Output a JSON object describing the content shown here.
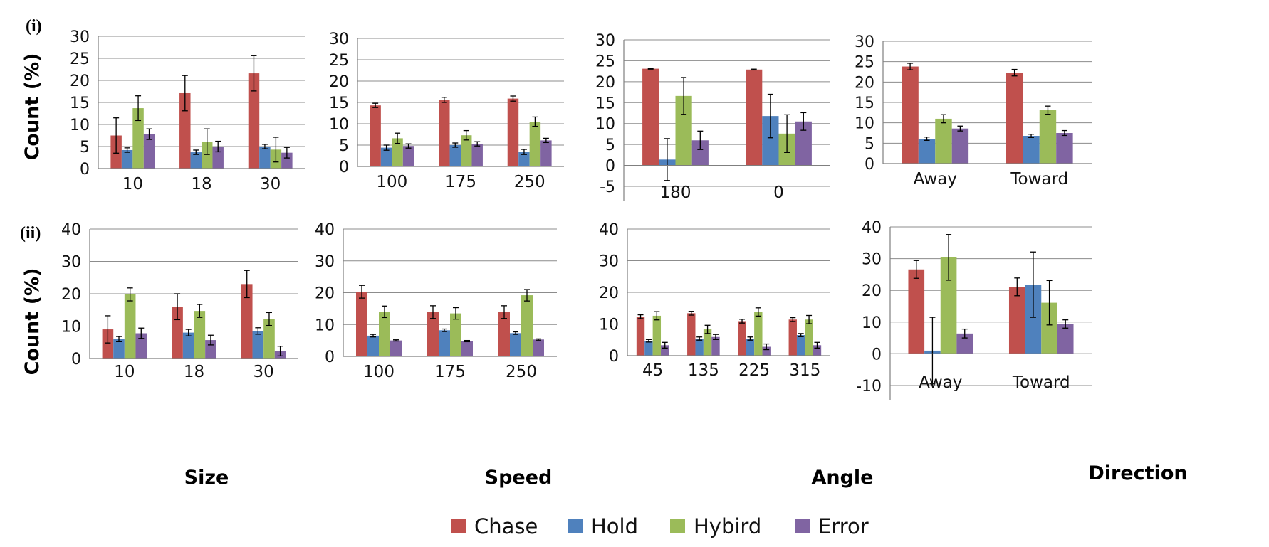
{
  "row_labels": [
    "(i)",
    "(ii)"
  ],
  "y_axis_label": "Count (%)",
  "column_labels": [
    "Size",
    "Speed",
    "Angle",
    "Direction"
  ],
  "legend": [
    {
      "name": "Chase",
      "color": "#c0504d"
    },
    {
      "name": "Hold",
      "color": "#4f81bd"
    },
    {
      "name": "Hybird",
      "color": "#9bbb59"
    },
    {
      "name": "Error",
      "color": "#8064a2"
    }
  ],
  "chart_data": [
    {
      "type": "bar",
      "row": "(i)",
      "column": "Size",
      "ylim": [
        0,
        30
      ],
      "yticks": [
        0,
        5,
        10,
        15,
        20,
        25,
        30
      ],
      "categories": [
        "10",
        "18",
        "30"
      ],
      "series": [
        {
          "name": "Chase",
          "values": [
            7.5,
            17.1,
            21.6
          ],
          "errors": [
            4.0,
            4.0,
            4.0
          ]
        },
        {
          "name": "Hold",
          "values": [
            4.2,
            3.7,
            5.0
          ],
          "errors": [
            0.5,
            0.5,
            0.5
          ]
        },
        {
          "name": "Hybird",
          "values": [
            13.7,
            6.1,
            4.3
          ],
          "errors": [
            2.8,
            2.9,
            2.8
          ]
        },
        {
          "name": "Error",
          "values": [
            7.8,
            5.0,
            3.6
          ],
          "errors": [
            1.2,
            1.2,
            1.2
          ]
        }
      ]
    },
    {
      "type": "bar",
      "row": "(i)",
      "column": "Speed",
      "ylim": [
        0,
        30
      ],
      "yticks": [
        0,
        5,
        10,
        15,
        20,
        25,
        30
      ],
      "categories": [
        "100",
        "175",
        "250"
      ],
      "series": [
        {
          "name": "Chase",
          "values": [
            14.3,
            15.6,
            15.9
          ],
          "errors": [
            0.5,
            0.6,
            0.6
          ]
        },
        {
          "name": "Hold",
          "values": [
            4.4,
            5.0,
            3.4
          ],
          "errors": [
            0.6,
            0.5,
            0.6
          ]
        },
        {
          "name": "Hybird",
          "values": [
            6.6,
            7.3,
            10.5
          ],
          "errors": [
            1.2,
            1.1,
            1.1
          ]
        },
        {
          "name": "Error",
          "values": [
            4.8,
            5.3,
            6.1
          ],
          "errors": [
            0.5,
            0.5,
            0.5
          ]
        }
      ]
    },
    {
      "type": "bar",
      "row": "(i)",
      "column": "Angle",
      "ylim": [
        -5,
        30
      ],
      "yticks": [
        -5,
        0,
        5,
        10,
        15,
        20,
        25,
        30
      ],
      "categories": [
        "180",
        "0"
      ],
      "series": [
        {
          "name": "Chase",
          "values": [
            23.1,
            22.9
          ],
          "errors": [
            0.1,
            0.1
          ]
        },
        {
          "name": "Hold",
          "values": [
            1.4,
            11.8
          ],
          "errors": [
            5.0,
            5.2
          ]
        },
        {
          "name": "Hybird",
          "values": [
            16.6,
            7.6
          ],
          "errors": [
            4.4,
            4.5
          ]
        },
        {
          "name": "Error",
          "values": [
            6.0,
            10.5
          ],
          "errors": [
            2.2,
            2.1
          ]
        }
      ]
    },
    {
      "type": "bar",
      "row": "(i)",
      "column": "Direction",
      "ylim": [
        0,
        30
      ],
      "yticks": [
        0,
        5,
        10,
        15,
        20,
        25,
        30
      ],
      "categories": [
        "Away",
        "Toward"
      ],
      "series": [
        {
          "name": "Chase",
          "values": [
            23.8,
            22.3
          ],
          "errors": [
            0.8,
            0.8
          ]
        },
        {
          "name": "Hold",
          "values": [
            6.1,
            6.8
          ],
          "errors": [
            0.4,
            0.4
          ]
        },
        {
          "name": "Hybird",
          "values": [
            11.0,
            13.1
          ],
          "errors": [
            1.0,
            1.0
          ]
        },
        {
          "name": "Error",
          "values": [
            8.6,
            7.5
          ],
          "errors": [
            0.6,
            0.6
          ]
        }
      ]
    },
    {
      "type": "bar",
      "row": "(ii)",
      "column": "Size",
      "ylim": [
        0,
        40
      ],
      "yticks": [
        0,
        10,
        20,
        30,
        40
      ],
      "categories": [
        "10",
        "18",
        "30"
      ],
      "series": [
        {
          "name": "Chase",
          "values": [
            9.0,
            16.0,
            23.0
          ],
          "errors": [
            4.2,
            4.0,
            4.2
          ]
        },
        {
          "name": "Hold",
          "values": [
            6.0,
            8.0,
            8.5
          ],
          "errors": [
            0.8,
            1.0,
            1.0
          ]
        },
        {
          "name": "Hybird",
          "values": [
            19.8,
            14.7,
            12.2
          ],
          "errors": [
            2.0,
            2.0,
            2.0
          ]
        },
        {
          "name": "Error",
          "values": [
            7.8,
            5.7,
            2.3
          ],
          "errors": [
            1.6,
            1.5,
            1.5
          ]
        }
      ]
    },
    {
      "type": "bar",
      "row": "(ii)",
      "column": "Speed",
      "ylim": [
        0,
        40
      ],
      "yticks": [
        0,
        10,
        20,
        30,
        40
      ],
      "categories": [
        "100",
        "175",
        "250"
      ],
      "series": [
        {
          "name": "Chase",
          "values": [
            20.3,
            13.9,
            13.9
          ],
          "errors": [
            2.0,
            2.0,
            2.0
          ]
        },
        {
          "name": "Hold",
          "values": [
            6.5,
            8.2,
            7.3
          ],
          "errors": [
            0.4,
            0.4,
            0.4
          ]
        },
        {
          "name": "Hybird",
          "values": [
            14.0,
            13.5,
            19.2
          ],
          "errors": [
            1.8,
            1.8,
            1.8
          ]
        },
        {
          "name": "Error",
          "values": [
            5.0,
            4.8,
            5.3
          ],
          "errors": [
            0.2,
            0.2,
            0.2
          ]
        }
      ]
    },
    {
      "type": "bar",
      "row": "(ii)",
      "column": "Angle",
      "ylim": [
        0,
        40
      ],
      "yticks": [
        0,
        10,
        20,
        30,
        40
      ],
      "categories": [
        "45",
        "135",
        "225",
        "315"
      ],
      "series": [
        {
          "name": "Chase",
          "values": [
            12.3,
            13.4,
            10.9,
            11.4
          ],
          "errors": [
            0.6,
            0.6,
            0.6,
            0.6
          ]
        },
        {
          "name": "Hold",
          "values": [
            4.7,
            5.4,
            5.4,
            6.5
          ],
          "errors": [
            0.4,
            0.5,
            0.5,
            0.5
          ]
        },
        {
          "name": "Hybird",
          "values": [
            12.6,
            8.3,
            13.8,
            11.4
          ],
          "errors": [
            1.3,
            1.3,
            1.3,
            1.3
          ]
        },
        {
          "name": "Error",
          "values": [
            3.3,
            5.9,
            2.8,
            3.3
          ],
          "errors": [
            0.9,
            0.8,
            0.9,
            0.9
          ]
        }
      ]
    },
    {
      "type": "bar",
      "row": "(ii)",
      "column": "Direction",
      "ylim": [
        -10,
        40
      ],
      "yticks": [
        -10,
        0,
        10,
        20,
        30,
        40
      ],
      "categories": [
        "Away",
        "Toward"
      ],
      "series": [
        {
          "name": "Chase",
          "values": [
            26.6,
            21.1
          ],
          "errors": [
            2.8,
            2.8
          ]
        },
        {
          "name": "Hold",
          "values": [
            1.0,
            21.8
          ],
          "errors": [
            10.5,
            10.3
          ]
        },
        {
          "name": "Hybird",
          "values": [
            30.4,
            16.1
          ],
          "errors": [
            7.2,
            7.0
          ]
        },
        {
          "name": "Error",
          "values": [
            6.4,
            9.4
          ],
          "errors": [
            1.4,
            1.3
          ]
        }
      ]
    }
  ]
}
